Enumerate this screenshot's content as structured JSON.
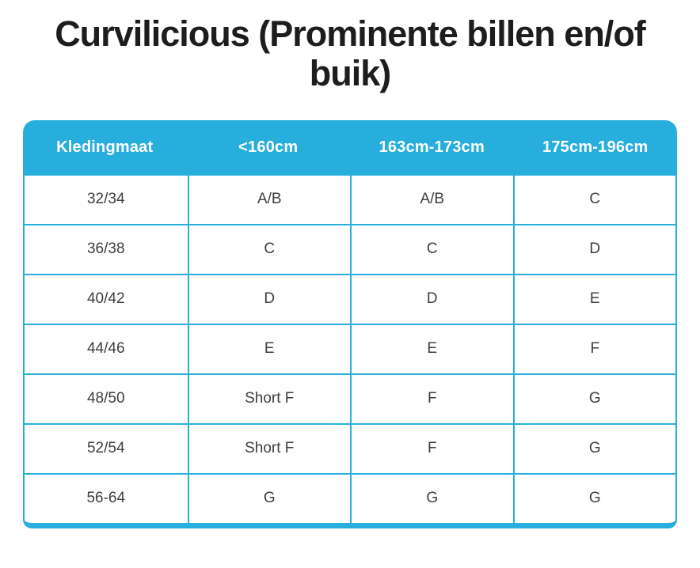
{
  "page": {
    "title_display": "Curvilicious (Prominente billen en/of\nbuik)"
  },
  "chart_data": {
    "type": "table",
    "title": "Curvilicious (Prominente billen en/of buik)",
    "columns": [
      "Kledingmaat",
      "<160cm",
      "163cm-173cm",
      "175cm-196cm"
    ],
    "rows": [
      [
        "32/34",
        "A/B",
        "A/B",
        "C"
      ],
      [
        "36/38",
        "C",
        "C",
        "D"
      ],
      [
        "40/42",
        "D",
        "D",
        "E"
      ],
      [
        "44/46",
        "E",
        "E",
        "F"
      ],
      [
        "48/50",
        "Short F",
        "F",
        "G"
      ],
      [
        "52/54",
        "Short F",
        "F",
        "G"
      ],
      [
        "56-64",
        "G",
        "G",
        "G"
      ]
    ],
    "layout": {
      "header_background": "accent",
      "grid_lines": "on",
      "header_corner_radius": "rounded-top",
      "bottom_bar": "thick-rounded"
    }
  },
  "colors": {
    "accent_cyan": "#27AEDC",
    "header_text": "#FFFFFF",
    "body_text": "#3E3E40",
    "title_text": "#1D1D1F"
  }
}
